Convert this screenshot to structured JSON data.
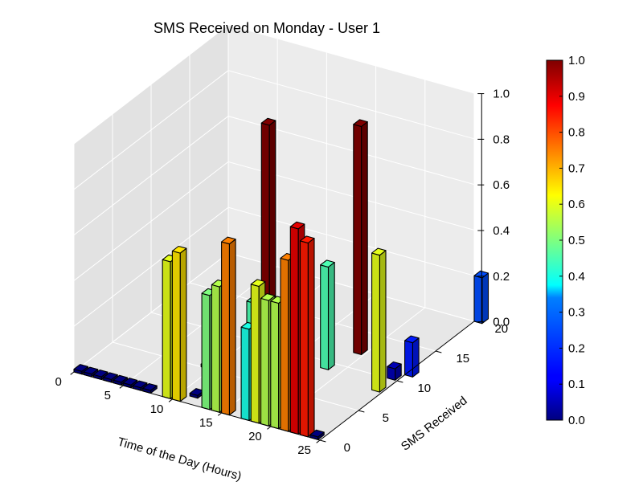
{
  "chart_data": {
    "type": "bar3d",
    "title": "SMS Received on Monday - User 1",
    "xlabel": "Time of the Day (Hours)",
    "ylabel": "SMS Received",
    "zlabel": "",
    "xlim": [
      0,
      25
    ],
    "ylim": [
      0,
      20
    ],
    "zlim": [
      0,
      1.0
    ],
    "x_ticks": [
      "0",
      "5",
      "10",
      "15",
      "20",
      "25"
    ],
    "y_ticks": [
      "0",
      "5",
      "10",
      "15",
      "20"
    ],
    "z_ticks": [
      "0.0",
      "0.2",
      "0.4",
      "0.6",
      "0.8",
      "1.0"
    ],
    "colorbar": {
      "colormap": "jet",
      "range": [
        0.0,
        1.0
      ],
      "ticks": [
        "0.0",
        "0.1",
        "0.2",
        "0.3",
        "0.4",
        "0.5",
        "0.6",
        "0.7",
        "0.8",
        "0.9",
        "1.0"
      ]
    },
    "grid": true,
    "bars": [
      {
        "x": 0,
        "y": 0,
        "z": 0.0
      },
      {
        "x": 1,
        "y": 0,
        "z": 0.0
      },
      {
        "x": 2,
        "y": 0,
        "z": 0.0
      },
      {
        "x": 3,
        "y": 0,
        "z": 0.0
      },
      {
        "x": 4,
        "y": 0,
        "z": 0.0
      },
      {
        "x": 5,
        "y": 0,
        "z": 0.0
      },
      {
        "x": 6,
        "y": 0,
        "z": 0.0
      },
      {
        "x": 7,
        "y": 0,
        "z": 0.0
      },
      {
        "x": 8,
        "y": 2,
        "z": 0.15
      },
      {
        "x": 9,
        "y": 0,
        "z": 0.6
      },
      {
        "x": 10,
        "y": 0,
        "z": 0.65
      },
      {
        "x": 11,
        "y": 1,
        "z": 0.0
      },
      {
        "x": 12,
        "y": 9,
        "z": 1.0
      },
      {
        "x": 13,
        "y": 0,
        "z": 0.5
      },
      {
        "x": 14,
        "y": 0,
        "z": 0.55
      },
      {
        "x": 15,
        "y": 0,
        "z": 0.75
      },
      {
        "x": 16,
        "y": 2,
        "z": 0.45
      },
      {
        "x": 17,
        "y": 0,
        "z": 0.4
      },
      {
        "x": 18,
        "y": 0,
        "z": 0.6
      },
      {
        "x": 19,
        "y": 0,
        "z": 0.55
      },
      {
        "x": 20,
        "y": 0,
        "z": 0.55
      },
      {
        "x": 21,
        "y": 0,
        "z": 0.75
      },
      {
        "x": 22,
        "y": 0,
        "z": 0.9
      },
      {
        "x": 23,
        "y": 0,
        "z": 0.85
      },
      {
        "x": 24,
        "y": 0,
        "z": 0.0
      },
      {
        "x": 18,
        "y": 9,
        "z": 0.45
      },
      {
        "x": 19,
        "y": 12,
        "z": 1.0
      },
      {
        "x": 24,
        "y": 8,
        "z": 0.6
      },
      {
        "x": 24,
        "y": 10,
        "z": 0.05
      },
      {
        "x": 25,
        "y": 11,
        "z": 0.15
      },
      {
        "x": 25,
        "y": 20,
        "z": 0.2
      },
      {
        "x": 9,
        "y": 5,
        "z": 0.0
      },
      {
        "x": 15,
        "y": 6,
        "z": 0.0
      }
    ]
  }
}
